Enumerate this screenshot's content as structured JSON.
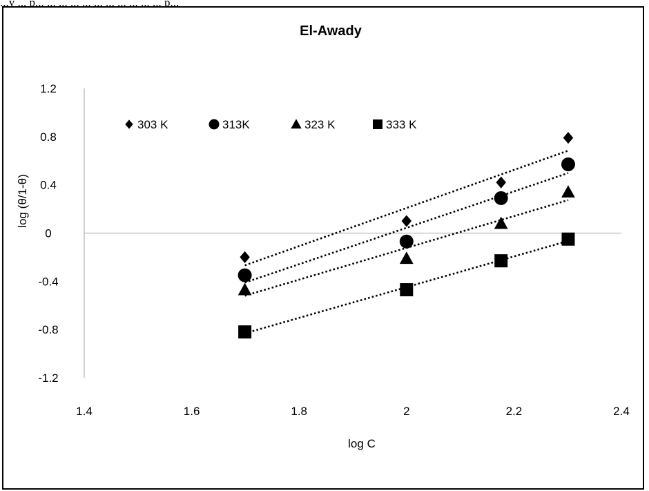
{
  "caption_fragment": "...y ... p... ... ... ... ... ... ... ... ... ... ... p...",
  "chart_data": {
    "type": "scatter",
    "title": "El-Awady",
    "xlabel": "log C",
    "ylabel": "log (θ/1-θ)",
    "xlim": [
      1.4,
      2.4
    ],
    "ylim": [
      -1.2,
      1.2
    ],
    "xticks": [
      "1.4",
      "1.6",
      "1.8",
      "2",
      "2.2",
      "2.4"
    ],
    "yticks": [
      "1.2",
      "0.8",
      "0.4",
      "0",
      "-0.4",
      "-0.8",
      "-1.2"
    ],
    "grid": false,
    "legend_position": "top-left",
    "trendline": "linear, dotted",
    "x": [
      1.699,
      2.0,
      2.176,
      2.301
    ],
    "series": [
      {
        "name": "303 K",
        "marker": "diamond",
        "values": [
          -0.2,
          0.1,
          0.42,
          0.79
        ]
      },
      {
        "name": "313K",
        "marker": "circle",
        "values": [
          -0.35,
          -0.07,
          0.29,
          0.57
        ]
      },
      {
        "name": "323 K",
        "marker": "triangle",
        "values": [
          -0.47,
          -0.21,
          0.08,
          0.34
        ]
      },
      {
        "name": "333 K",
        "marker": "square",
        "values": [
          -0.82,
          -0.47,
          -0.23,
          -0.05
        ]
      }
    ],
    "color": "#000000",
    "axis_color": "#a6a6a6"
  }
}
